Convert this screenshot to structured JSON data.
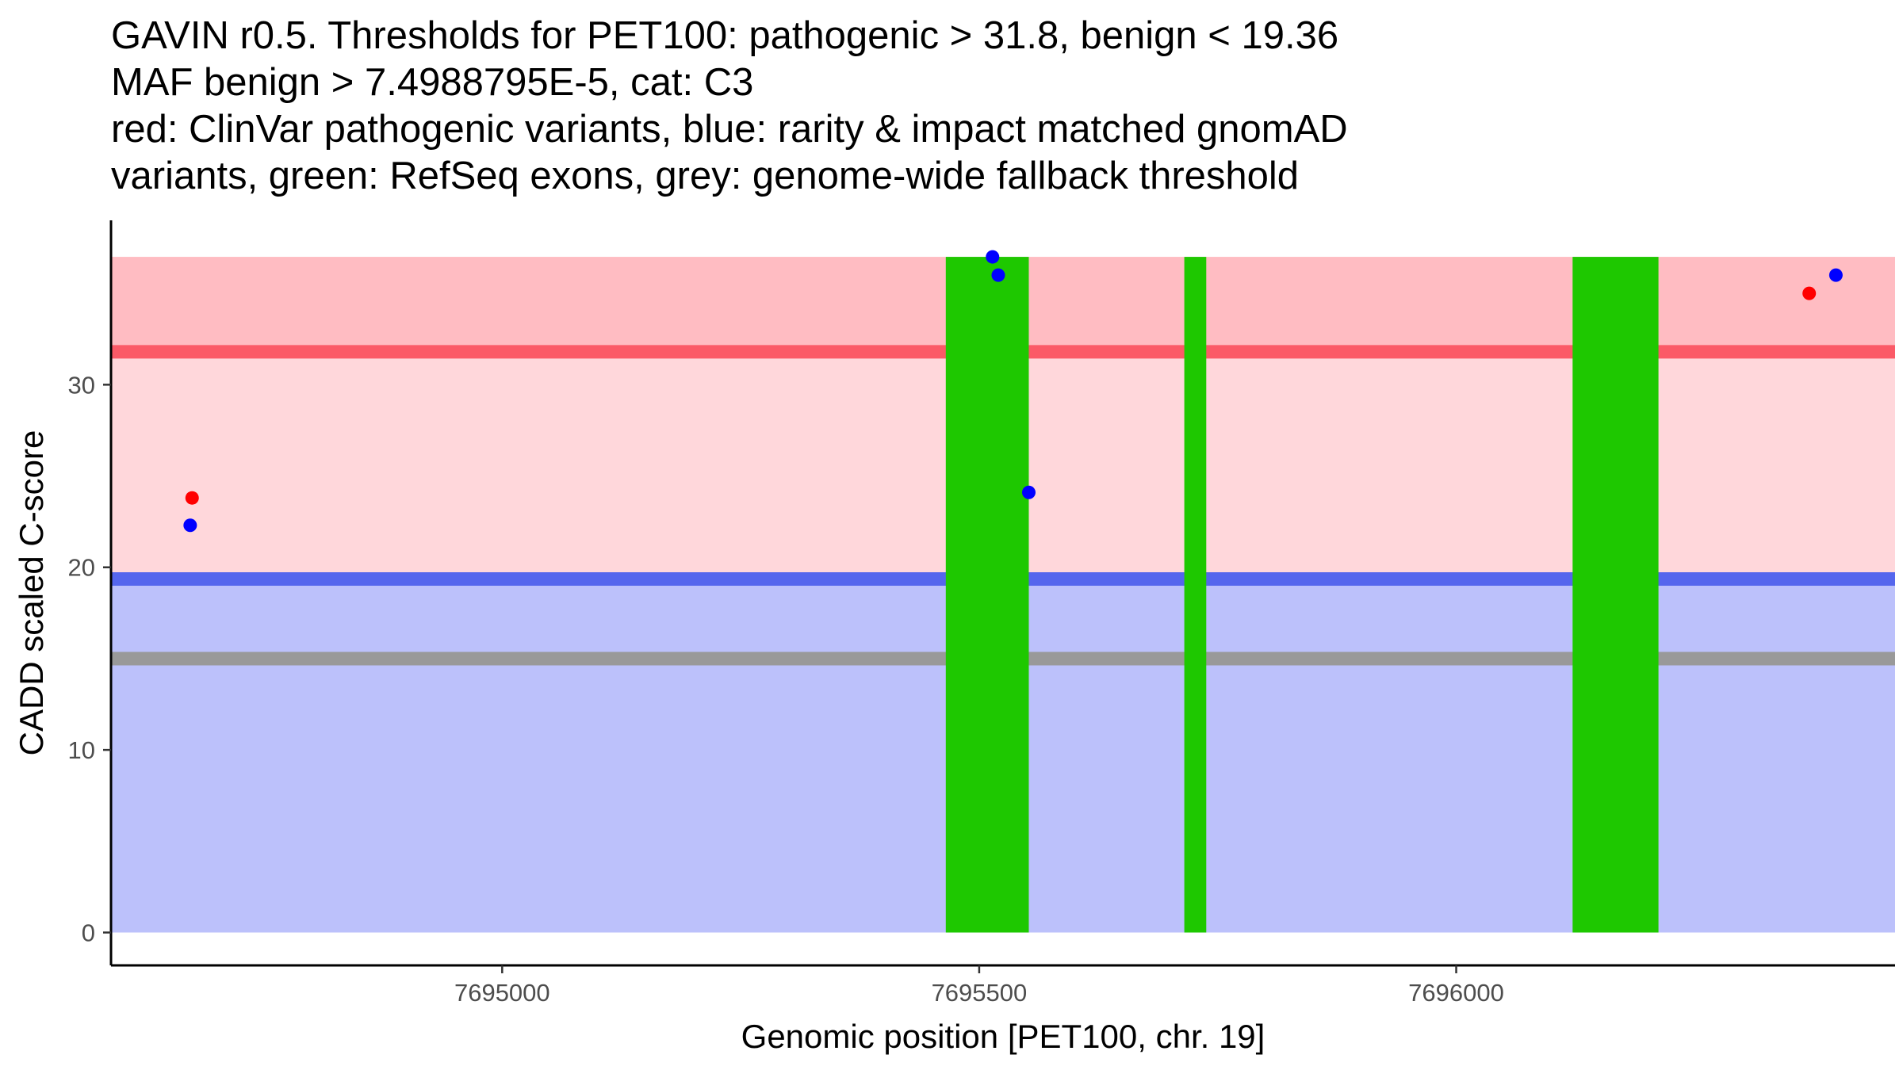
{
  "title_lines": [
    "GAVIN r0.5. Thresholds for PET100: pathogenic > 31.8, benign < 19.36",
    "MAF benign > 7.4988795E-5, cat: C3",
    "red: ClinVar pathogenic variants, blue: rarity & impact matched gnomAD",
    "variants, green: RefSeq exons, grey: genome-wide fallback threshold"
  ],
  "chart_data": {
    "type": "scatter",
    "title": "GAVIN r0.5. Thresholds for PET100: pathogenic > 31.8, benign < 19.36 / MAF benign > 7.4988795E-5, cat: C3",
    "xlabel": "Genomic position [PET100, chr. 19]",
    "ylabel": "CADD scaled C-score",
    "xlim": [
      7694590,
      7696460
    ],
    "ylim": [
      -1.8,
      39
    ],
    "xticks": [
      7695000,
      7695500,
      7696000
    ],
    "xtick_labels": [
      "7695000",
      "7695500",
      "7696000"
    ],
    "yticks": [
      0,
      10,
      20,
      30
    ],
    "ytick_labels": [
      "0",
      "10",
      "20",
      "30"
    ],
    "bands": [
      {
        "name": "benign-zone",
        "from": 0,
        "to": 19.36,
        "color": "#bcc1fb"
      },
      {
        "name": "intermediate-zone",
        "from": 19.36,
        "to": 31.8,
        "color": "#ffd7db"
      },
      {
        "name": "pathogenic-zone",
        "from": 31.8,
        "to": 37,
        "color": "#ffbcc2"
      }
    ],
    "thresholds": [
      {
        "name": "pathogenic-threshold",
        "value": 31.8,
        "color": "#fb5a67"
      },
      {
        "name": "benign-threshold",
        "value": 19.36,
        "color": "#5566ed"
      },
      {
        "name": "genome-wide-fallback-threshold",
        "value": 15,
        "color": "#999999"
      }
    ],
    "exons": [
      {
        "start": 7695465,
        "end": 7695552
      },
      {
        "start": 7695715,
        "end": 7695738
      },
      {
        "start": 7696122,
        "end": 7696212
      }
    ],
    "exon_top": 37,
    "exon_color": "#1ec800",
    "series": [
      {
        "name": "ClinVar pathogenic variants",
        "color": "#ff0000",
        "points": [
          {
            "x": 7694675,
            "y": 23.8
          },
          {
            "x": 7696370,
            "y": 35
          }
        ]
      },
      {
        "name": "rarity & impact matched gnomAD variants",
        "color": "#0000ff",
        "points": [
          {
            "x": 7694673,
            "y": 22.3
          },
          {
            "x": 7695514,
            "y": 37
          },
          {
            "x": 7695520,
            "y": 36
          },
          {
            "x": 7695552,
            "y": 24.1
          },
          {
            "x": 7696398,
            "y": 36
          }
        ]
      }
    ]
  }
}
